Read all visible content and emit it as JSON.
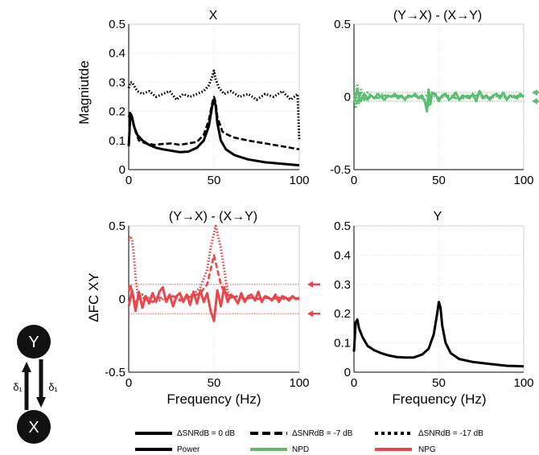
{
  "chart_data": [
    {
      "id": "top-left",
      "type": "line",
      "title": "X",
      "xlabel": "",
      "ylabel": "Magniutde",
      "xlim": [
        0,
        100
      ],
      "ylim": [
        0,
        0.5
      ],
      "xticks": [
        "0",
        "50",
        "100"
      ],
      "yticks": [
        "0",
        "0.1",
        "0.2",
        "0.3",
        "0.4",
        "0.5"
      ],
      "grid": true,
      "series": [
        {
          "style": "solid",
          "color": "#000000",
          "x": [
            0,
            1,
            2,
            3,
            5,
            8,
            12,
            16,
            20,
            25,
            30,
            35,
            40,
            44,
            47,
            49,
            50,
            51,
            52,
            54,
            57,
            62,
            70,
            80,
            90,
            100
          ],
          "y": [
            0.08,
            0.19,
            0.18,
            0.15,
            0.12,
            0.1,
            0.085,
            0.075,
            0.07,
            0.065,
            0.06,
            0.062,
            0.075,
            0.1,
            0.15,
            0.22,
            0.24,
            0.22,
            0.16,
            0.1,
            0.07,
            0.05,
            0.035,
            0.025,
            0.02,
            0.015
          ]
        },
        {
          "style": "dashed",
          "color": "#000000",
          "x": [
            0,
            1,
            2,
            4,
            6,
            10,
            15,
            20,
            25,
            30,
            35,
            40,
            44,
            47,
            49,
            50,
            51,
            52,
            55,
            58,
            62,
            70,
            80,
            90,
            100
          ],
          "y": [
            0.18,
            0.2,
            0.18,
            0.13,
            0.1,
            0.09,
            0.085,
            0.088,
            0.09,
            0.085,
            0.09,
            0.095,
            0.12,
            0.17,
            0.23,
            0.25,
            0.23,
            0.18,
            0.13,
            0.12,
            0.11,
            0.1,
            0.09,
            0.08,
            0.07
          ]
        },
        {
          "style": "dotted",
          "color": "#000000",
          "x": [
            0,
            1,
            2,
            5,
            8,
            12,
            16,
            20,
            24,
            28,
            32,
            36,
            40,
            44,
            47,
            49,
            50,
            51,
            53,
            56,
            60,
            65,
            70,
            75,
            80,
            85,
            90,
            95,
            99,
            100
          ],
          "y": [
            0.28,
            0.3,
            0.3,
            0.27,
            0.26,
            0.27,
            0.25,
            0.26,
            0.27,
            0.24,
            0.26,
            0.25,
            0.26,
            0.27,
            0.29,
            0.32,
            0.34,
            0.31,
            0.28,
            0.26,
            0.27,
            0.25,
            0.26,
            0.24,
            0.26,
            0.25,
            0.27,
            0.24,
            0.26,
            0.1
          ]
        }
      ]
    },
    {
      "id": "top-right",
      "type": "line",
      "title": "(Y→X) - (X→Y)",
      "xlabel": "",
      "ylabel": "",
      "xlim": [
        0,
        100
      ],
      "ylim": [
        -0.5,
        0.5
      ],
      "xticks": [
        "0",
        "50",
        "100"
      ],
      "yticks": [
        "-0.5",
        "0",
        "0.5"
      ],
      "grid": true,
      "hlines": [
        0.03,
        -0.03
      ],
      "arrows": [
        0.03,
        -0.03
      ],
      "series": [
        {
          "style": "solid",
          "color": "#5bbd72",
          "x": [
            0,
            2,
            4,
            6,
            8,
            10,
            12,
            14,
            16,
            18,
            20,
            22,
            24,
            26,
            28,
            30,
            32,
            34,
            36,
            38,
            40,
            42,
            43,
            44,
            45,
            46,
            48,
            50,
            52,
            54,
            56,
            58,
            60,
            62,
            64,
            66,
            68,
            70,
            72,
            74,
            76,
            78,
            80,
            82,
            84,
            86,
            88,
            90,
            92,
            94,
            96,
            98,
            100
          ],
          "y": [
            -0.04,
            0.05,
            -0.03,
            0.02,
            -0.02,
            0.01,
            -0.01,
            0.02,
            0,
            -0.02,
            0.01,
            0,
            0.02,
            -0.01,
            0.01,
            -0.02,
            0.01,
            0,
            0.02,
            -0.01,
            0.01,
            -0.04,
            -0.1,
            0.05,
            -0.05,
            0.03,
            0.02,
            -0.03,
            0.01,
            0.02,
            -0.02,
            0,
            0.03,
            -0.02,
            0.01,
            0,
            -0.01,
            0.02,
            -0.03,
            0.04,
            -0.01,
            0.01,
            -0.02,
            0.01,
            0.02,
            -0.01,
            0.03,
            -0.02,
            0.01,
            0,
            -0.01,
            0.02,
            0
          ]
        },
        {
          "style": "dashed",
          "color": "#5bbd72",
          "x": [
            0,
            2,
            4,
            6,
            10,
            14,
            18,
            22,
            26,
            30,
            34,
            38,
            42,
            44,
            46,
            50,
            54,
            58,
            62,
            66,
            70,
            74,
            78,
            82,
            86,
            90,
            94,
            98,
            100
          ],
          "y": [
            0.02,
            -0.04,
            0.03,
            -0.02,
            0.01,
            -0.01,
            0.01,
            0,
            0.01,
            -0.01,
            0.01,
            0,
            -0.02,
            -0.06,
            0.03,
            -0.01,
            0.01,
            0,
            -0.02,
            0.01,
            0,
            0.02,
            -0.01,
            0,
            0.01,
            -0.01,
            0,
            0.01,
            0
          ]
        },
        {
          "style": "dotted",
          "color": "#5bbd72",
          "x": [
            0,
            1,
            2,
            3,
            4,
            6,
            8,
            12,
            16,
            20,
            25,
            30,
            35,
            40,
            45,
            50,
            55,
            60,
            65,
            70,
            75,
            80,
            85,
            90,
            95,
            100
          ],
          "y": [
            0.1,
            -0.08,
            0.09,
            -0.05,
            0.06,
            -0.02,
            0.03,
            -0.01,
            0.02,
            0,
            0.01,
            -0.01,
            0.01,
            0,
            0.02,
            -0.01,
            0.01,
            0,
            -0.01,
            0.01,
            0,
            -0.01,
            0.01,
            0,
            0.01,
            0
          ]
        }
      ]
    },
    {
      "id": "bottom-left",
      "type": "line",
      "title": "(Y→X) - (X→Y)",
      "xlabel": "Frequency (Hz)",
      "ylabel": "ΔFC XY",
      "xlim": [
        0,
        100
      ],
      "ylim": [
        -0.5,
        0.5
      ],
      "xticks": [
        "0",
        "50",
        "100"
      ],
      "yticks": [
        "-0.5",
        "0",
        "0.5"
      ],
      "grid": true,
      "hlines": [
        0.1,
        -0.1
      ],
      "arrows": [
        0.1,
        -0.1
      ],
      "series": [
        {
          "style": "solid",
          "color": "#e8474b",
          "x": [
            0,
            2,
            4,
            6,
            8,
            10,
            12,
            14,
            16,
            18,
            20,
            22,
            24,
            26,
            28,
            30,
            32,
            34,
            36,
            38,
            40,
            42,
            44,
            46,
            48,
            50,
            52,
            54,
            56,
            58,
            60,
            62,
            64,
            66,
            68,
            70,
            72,
            74,
            76,
            78,
            80,
            82,
            84,
            86,
            88,
            90,
            92,
            94,
            96,
            98,
            100
          ],
          "y": [
            -0.05,
            0.06,
            -0.08,
            0.05,
            -0.06,
            0.02,
            -0.03,
            0.04,
            -0.02,
            0.05,
            0.08,
            -0.02,
            0.03,
            -0.05,
            0.02,
            0.04,
            -0.02,
            0.03,
            -0.04,
            0.05,
            -0.03,
            0.06,
            -0.02,
            0.04,
            -0.08,
            -0.15,
            0.06,
            -0.05,
            0.08,
            -0.02,
            0.03,
            0.01,
            -0.03,
            0.04,
            -0.02,
            0.02,
            0.03,
            -0.01,
            0.05,
            -0.02,
            0.02,
            0.01,
            -0.01,
            0.03,
            -0.02,
            0.02,
            0.01,
            -0.01,
            0.02,
            0,
            0.01
          ]
        },
        {
          "style": "dashed",
          "color": "#e8474b",
          "x": [
            0,
            1,
            2,
            4,
            6,
            8,
            10,
            14,
            18,
            22,
            26,
            30,
            34,
            38,
            42,
            46,
            48,
            50,
            52,
            54,
            56,
            58,
            60,
            64,
            68,
            72,
            76,
            80,
            84,
            88,
            92,
            96,
            100
          ],
          "y": [
            0.05,
            0.1,
            0.05,
            -0.03,
            0.02,
            0,
            0.01,
            -0.02,
            0.01,
            0,
            0.02,
            -0.01,
            0.01,
            0.02,
            0.04,
            0.1,
            0.2,
            0.3,
            0.2,
            0.1,
            0.05,
            0.03,
            0.01,
            0.02,
            0,
            0.01,
            0,
            0.01,
            0,
            0.01,
            0,
            0.01,
            0
          ]
        },
        {
          "style": "dotted",
          "color": "#e8474b",
          "x": [
            0,
            1,
            2,
            3,
            4,
            5,
            6,
            8,
            10,
            14,
            18,
            22,
            26,
            30,
            34,
            38,
            42,
            46,
            48,
            50,
            51,
            52,
            54,
            56,
            58,
            60,
            64,
            68,
            72,
            76,
            80,
            84,
            88,
            92,
            96,
            100
          ],
          "y": [
            0.4,
            0.43,
            0.4,
            0.3,
            0.15,
            0.05,
            0,
            0.03,
            0,
            0.02,
            -0.01,
            0.01,
            0.02,
            0,
            0.02,
            0.03,
            0.08,
            0.2,
            0.35,
            0.45,
            0.5,
            0.45,
            0.35,
            0.2,
            0.05,
            0.01,
            0.02,
            0,
            0.01,
            0,
            0.01,
            0,
            0.01,
            0,
            0.01,
            0
          ]
        }
      ]
    },
    {
      "id": "bottom-right",
      "type": "line",
      "title": "Y",
      "xlabel": "Frequency (Hz)",
      "ylabel": "",
      "xlim": [
        0,
        100
      ],
      "ylim": [
        0,
        0.5
      ],
      "xticks": [
        "0",
        "50",
        "100"
      ],
      "yticks": [
        "0",
        "0.1",
        "0.2",
        "0.3",
        "0.4",
        "0.5"
      ],
      "grid": true,
      "series": [
        {
          "style": "solid",
          "color": "#000000",
          "x": [
            0,
            1,
            2,
            3,
            5,
            8,
            12,
            16,
            20,
            25,
            30,
            35,
            40,
            44,
            47,
            49,
            50,
            51,
            52,
            54,
            57,
            62,
            70,
            80,
            90,
            100
          ],
          "y": [
            0.07,
            0.17,
            0.18,
            0.15,
            0.12,
            0.09,
            0.075,
            0.065,
            0.058,
            0.052,
            0.05,
            0.05,
            0.06,
            0.08,
            0.13,
            0.2,
            0.24,
            0.22,
            0.16,
            0.1,
            0.065,
            0.045,
            0.035,
            0.028,
            0.022,
            0.02
          ]
        }
      ]
    }
  ],
  "legend": {
    "row1": [
      {
        "label": "ΔSNRdB = 0 dB",
        "style": "solid"
      },
      {
        "label": "ΔSNRdB = -7 dB",
        "style": "dashed"
      },
      {
        "label": "ΔSNRdB = -17 dB",
        "style": "dotted"
      }
    ],
    "row2": [
      {
        "label": "Power",
        "color": "#000000"
      },
      {
        "label": "NPD",
        "color": "#6ab46d"
      },
      {
        "label": "NPG",
        "color": "#e8474b"
      }
    ]
  },
  "diagram": {
    "node_top": "Y",
    "node_bottom": "X",
    "label_left": "δ₁",
    "label_right": "δ₁"
  }
}
